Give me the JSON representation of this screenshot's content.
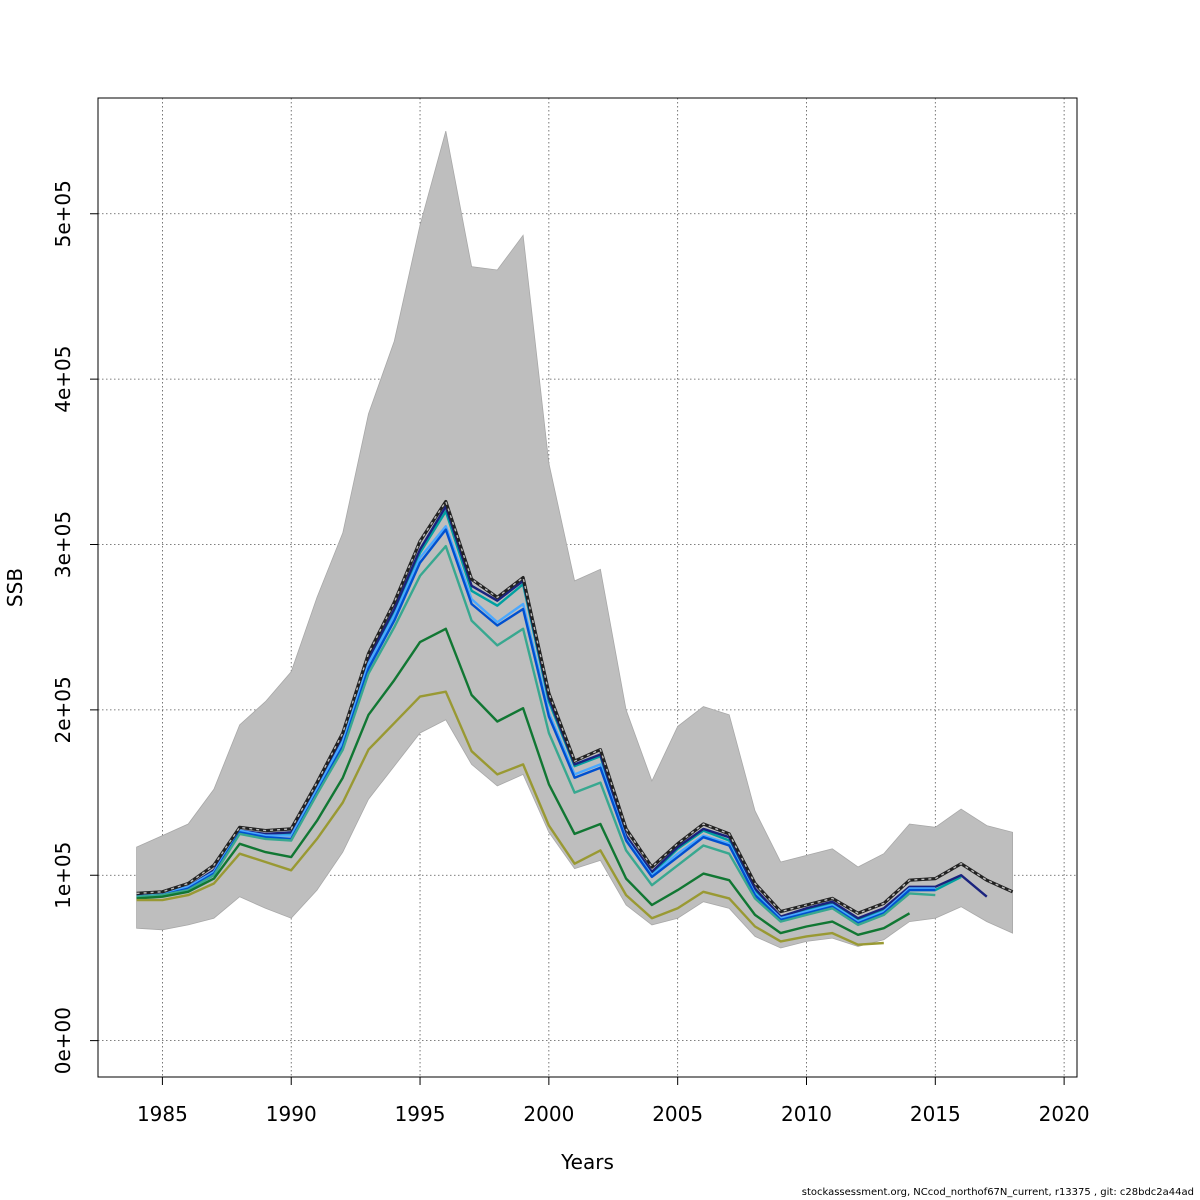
{
  "chart_data": {
    "type": "line",
    "title": "",
    "xlabel": "Years",
    "ylabel": "SSB",
    "xlim": [
      1982.5,
      2020.5
    ],
    "ylim": [
      -22000,
      570000
    ],
    "x_ticks": [
      1985,
      1990,
      1995,
      2000,
      2005,
      2010,
      2015,
      2020
    ],
    "x_tick_labels": [
      "1985",
      "1990",
      "1995",
      "2000",
      "2005",
      "2010",
      "2015",
      "2020"
    ],
    "y_ticks": [
      0,
      100000,
      200000,
      300000,
      400000,
      500000
    ],
    "y_tick_labels": [
      "0e+00",
      "1e+05",
      "2e+05",
      "3e+05",
      "4e+05",
      "5e+05"
    ],
    "grid": true,
    "confidence_band": {
      "x": [
        1984,
        1985,
        1986,
        1987,
        1988,
        1989,
        1990,
        1991,
        1992,
        1993,
        1994,
        1995,
        1996,
        1997,
        1998,
        1999,
        2000,
        2001,
        2002,
        2003,
        2004,
        2005,
        2006,
        2007,
        2008,
        2009,
        2010,
        2011,
        2012,
        2013,
        2014,
        2015,
        2016,
        2017,
        2018
      ],
      "lower": [
        68000,
        67000,
        70000,
        74000,
        87000,
        80000,
        74000,
        91000,
        114000,
        146000,
        166000,
        186000,
        194000,
        167000,
        154000,
        161000,
        126000,
        104000,
        109000,
        82000,
        70000,
        74000,
        84000,
        80000,
        63000,
        56000,
        60000,
        62000,
        57000,
        61000,
        72000,
        74000,
        81000,
        72000,
        65000
      ],
      "upper": [
        117000,
        124000,
        131000,
        152000,
        191000,
        205000,
        223000,
        268000,
        307000,
        379000,
        423000,
        493000,
        550000,
        468000,
        466000,
        487000,
        349000,
        278000,
        285000,
        200000,
        157000,
        190000,
        202000,
        197000,
        139000,
        108000,
        112000,
        116000,
        105000,
        113000,
        131000,
        129000,
        140000,
        130000,
        126000
      ]
    },
    "series": [
      {
        "color": "#00a0a0",
        "x": [
          1984,
          1985,
          1986,
          1987,
          1988,
          1989,
          1990,
          1991,
          1992,
          1993,
          1994,
          1995,
          1996,
          1997,
          1998,
          1999,
          2000,
          2001,
          2002,
          2003,
          2004,
          2005,
          2006,
          2007,
          2008,
          2009,
          2010,
          2011,
          2012,
          2013,
          2014,
          2015,
          2016,
          2017,
          2018
        ],
        "y": [
          87000,
          89000,
          92000,
          102000,
          127000,
          124000,
          125000,
          154000,
          183000,
          230000,
          260000,
          295000,
          320000,
          272000,
          263000,
          276000,
          205000,
          166000,
          172000,
          122000,
          101000,
          116000,
          127000,
          121000,
          91000,
          74000,
          79000,
          83000,
          73000,
          79000,
          91000,
          91000,
          99000,
          null,
          null
        ]
      },
      {
        "color": "#1a237e",
        "x": [
          1984,
          1985,
          1986,
          1987,
          1988,
          1989,
          1990,
          1991,
          1992,
          1993,
          1994,
          1995,
          1996,
          1997,
          1998,
          1999,
          2000,
          2001,
          2002,
          2003,
          2004,
          2005,
          2006,
          2007,
          2008,
          2009,
          2010,
          2011,
          2012,
          2013,
          2014,
          2015,
          2016,
          2017
        ],
        "y": [
          88000,
          89000,
          93000,
          103000,
          127000,
          125000,
          126000,
          155000,
          184000,
          231000,
          261000,
          297000,
          323000,
          275000,
          266000,
          278000,
          207000,
          167000,
          173000,
          124000,
          102000,
          117000,
          128000,
          123000,
          92000,
          75000,
          80000,
          84000,
          74000,
          80000,
          93000,
          93000,
          100000,
          87000
        ]
      },
      {
        "color": "#4aa8ff",
        "x": [
          1984,
          1985,
          1986,
          1987,
          1988,
          1989,
          1990,
          1991,
          1992,
          1993,
          1994,
          1995,
          1996,
          1997,
          1998,
          1999,
          2000,
          2001,
          2002,
          2003,
          2004,
          2005,
          2006,
          2007,
          2008,
          2009,
          2010,
          2011,
          2012,
          2013,
          2014,
          2015
        ],
        "y": [
          87000,
          89000,
          93000,
          102000,
          127000,
          124000,
          124000,
          152000,
          181000,
          228000,
          257000,
          292000,
          311000,
          267000,
          253000,
          264000,
          198000,
          161000,
          167000,
          122000,
          100000,
          113000,
          124000,
          119000,
          89000,
          74000,
          78000,
          82000,
          72000,
          78000,
          92000,
          92000
        ]
      },
      {
        "color": "#0050d0",
        "x": [
          1984,
          1985,
          1986,
          1987,
          1988,
          1989,
          1990,
          1991,
          1992,
          1993,
          1994,
          1995,
          1996,
          1997,
          1998,
          1999,
          2000,
          2001,
          2002,
          2003,
          2004,
          2005,
          2006,
          2007,
          2008,
          2009,
          2010,
          2011,
          2012,
          2013,
          2014,
          2015
        ],
        "y": [
          87000,
          88000,
          92000,
          101000,
          126000,
          123000,
          122000,
          150000,
          178000,
          225000,
          254000,
          289000,
          309000,
          264000,
          251000,
          261000,
          196000,
          159000,
          165000,
          121000,
          99000,
          111000,
          123000,
          118000,
          88000,
          73000,
          77000,
          81000,
          71000,
          77000,
          91000,
          91000
        ]
      },
      {
        "color": "#38a890",
        "x": [
          1984,
          1985,
          1986,
          1987,
          1988,
          1989,
          1990,
          1991,
          1992,
          1993,
          1994,
          1995,
          1996,
          1997,
          1998,
          1999,
          2000,
          2001,
          2002,
          2003,
          2004,
          2005,
          2006,
          2007,
          2008,
          2009,
          2010,
          2011,
          2012,
          2013,
          2014,
          2015
        ],
        "y": [
          87000,
          88000,
          91000,
          100000,
          125000,
          122000,
          121000,
          149000,
          176000,
          222000,
          250000,
          281000,
          299000,
          254000,
          239000,
          249000,
          186000,
          150000,
          156000,
          115000,
          94000,
          106000,
          118000,
          113000,
          86000,
          72000,
          76000,
          80000,
          70000,
          76000,
          89000,
          88000
        ]
      },
      {
        "color": "#117733",
        "x": [
          1984,
          1985,
          1986,
          1987,
          1988,
          1989,
          1990,
          1991,
          1992,
          1993,
          1994,
          1995,
          1996,
          1997,
          1998,
          1999,
          2000,
          2001,
          2002,
          2003,
          2004,
          2005,
          2006,
          2007,
          2008,
          2009,
          2010,
          2011,
          2012,
          2013,
          2014
        ],
        "y": [
          86000,
          87000,
          90000,
          98000,
          119000,
          114000,
          111000,
          133000,
          159000,
          197000,
          218000,
          241000,
          249000,
          209000,
          193000,
          201000,
          155000,
          125000,
          131000,
          98000,
          82000,
          91000,
          101000,
          97000,
          76000,
          65000,
          69000,
          72000,
          64000,
          68000,
          77000
        ]
      },
      {
        "color": "#999933",
        "x": [
          1984,
          1985,
          1986,
          1987,
          1988,
          1989,
          1990,
          1991,
          1992,
          1993,
          1994,
          1995,
          1996,
          1997,
          1998,
          1999,
          2000,
          2001,
          2002,
          2003,
          2004,
          2005,
          2006,
          2007,
          2008,
          2009,
          2010,
          2011,
          2012,
          2013
        ],
        "y": [
          85000,
          85000,
          88000,
          95000,
          113000,
          108000,
          103000,
          122000,
          144000,
          176000,
          192000,
          208000,
          211000,
          175000,
          161000,
          167000,
          130000,
          107000,
          115000,
          88000,
          74000,
          80000,
          90000,
          86000,
          69000,
          60000,
          63000,
          65000,
          58000,
          59000
        ]
      },
      {
        "color": "#222222",
        "dashed_overlay": true,
        "x": [
          1984,
          1985,
          1986,
          1987,
          1988,
          1989,
          1990,
          1991,
          1992,
          1993,
          1994,
          1995,
          1996,
          1997,
          1998,
          1999,
          2000,
          2001,
          2002,
          2003,
          2004,
          2005,
          2006,
          2007,
          2008,
          2009,
          2010,
          2011,
          2012,
          2013,
          2014,
          2015,
          2016,
          2017,
          2018
        ],
        "y": [
          89000,
          90000,
          95000,
          106000,
          129000,
          127000,
          128000,
          156000,
          186000,
          234000,
          265000,
          302000,
          326000,
          279000,
          268000,
          280000,
          210000,
          169000,
          176000,
          128000,
          105000,
          119000,
          131000,
          125000,
          95000,
          78000,
          82000,
          86000,
          77000,
          83000,
          97000,
          98000,
          107000,
          97000,
          90000
        ]
      }
    ]
  },
  "footer_text": "stockassessment.org, NCcod_northof67N_current, r13375 , git: c28bdc2a44ad"
}
